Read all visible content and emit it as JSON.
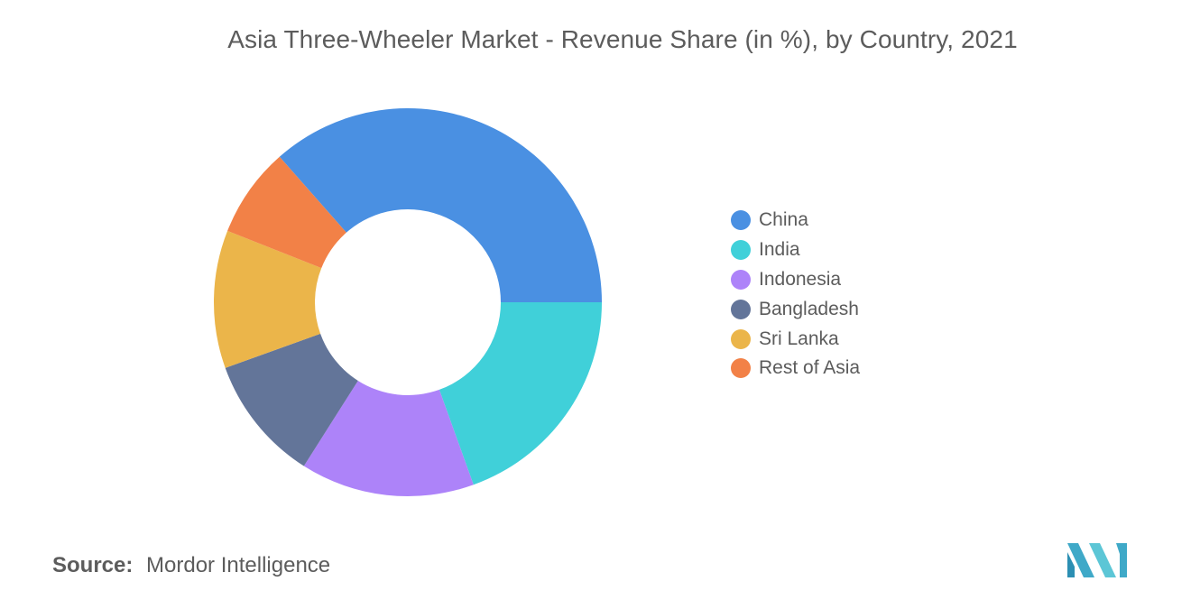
{
  "title": "Asia Three-Wheeler Market - Revenue Share (in %), by Country, 2021",
  "source": {
    "label": "Source:",
    "text": "Mordor Intelligence"
  },
  "logo": {
    "name": "mordor-intelligence-logo",
    "color": "#4fb8c9"
  },
  "chart_data": {
    "type": "pie",
    "donut": true,
    "title": "Asia Three-Wheeler Market - Revenue Share (in %), by Country, 2021",
    "legend_position": "right",
    "categories": [
      "China",
      "India",
      "Indonesia",
      "Bangladesh",
      "Sri Lanka",
      "Rest of Asia"
    ],
    "values": [
      36.5,
      19.5,
      14.5,
      10.5,
      11.5,
      7.5
    ],
    "colors": [
      "#4a90e2",
      "#40d0d9",
      "#ad83f9",
      "#637599",
      "#ebb54a",
      "#f28147"
    ]
  }
}
